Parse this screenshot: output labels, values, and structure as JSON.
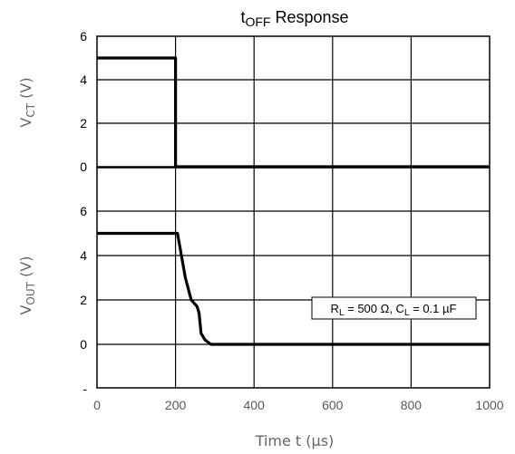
{
  "chart_data": [
    {
      "type": "line",
      "title_main": "t",
      "title_sub": "OFF",
      "title_rest": " Response",
      "ylabel_main": "V",
      "ylabel_sub": "CT",
      "ylabel_rest": " (V)",
      "ylim": [
        0,
        6
      ],
      "yticks": [
        "6",
        "4",
        "2",
        "0"
      ],
      "xlim": [
        0,
        1000
      ],
      "grid": true,
      "series": [
        {
          "color": "#000000",
          "x": [
            0,
            200,
            200,
            1000
          ],
          "y": [
            5,
            5,
            0,
            0
          ]
        }
      ]
    },
    {
      "type": "line",
      "ylabel_main": "V",
      "ylabel_sub": "OUT",
      "ylabel_rest": " (V)",
      "ylim": [
        -2,
        6
      ],
      "yticks": [
        "6",
        "4",
        "2",
        "0",
        "-"
      ],
      "xlim": [
        0,
        1000
      ],
      "xticks": [
        "0",
        "200",
        "400",
        "600",
        "800",
        "1000"
      ],
      "xlabel": "Time  t (µs)",
      "grid": true,
      "annotation_parts": [
        "R",
        "L",
        " = 500 Ω, C",
        "L",
        " = 0.1 µF"
      ],
      "series": [
        {
          "color": "#000000",
          "x": [
            0,
            205,
            215,
            225,
            240,
            255,
            260,
            265,
            275,
            290,
            1000
          ],
          "y": [
            5,
            5,
            4,
            3,
            2,
            1.7,
            1.4,
            0.5,
            0.2,
            0,
            0
          ]
        }
      ]
    }
  ]
}
